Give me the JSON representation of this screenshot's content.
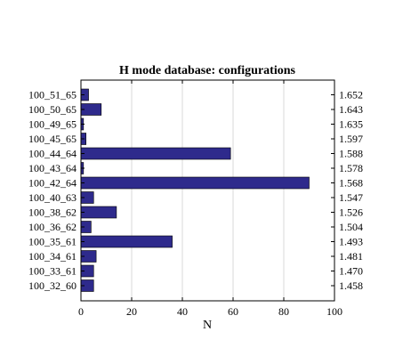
{
  "chart_data": {
    "type": "bar",
    "orientation": "horizontal",
    "title": "H mode database: configurations",
    "xlabel": "N",
    "ylabel": "",
    "xlim": [
      0,
      100
    ],
    "xticks": [
      0,
      20,
      40,
      60,
      80,
      100
    ],
    "grid": true,
    "bar_color": "#2e2a8c",
    "categories": [
      "100_51_65",
      "100_50_65",
      "100_49_65",
      "100_45_65",
      "100_44_64",
      "100_43_64",
      "100_42_64",
      "100_40_63",
      "100_38_62",
      "100_36_62",
      "100_35_61",
      "100_34_61",
      "100_33_61",
      "100_32_60"
    ],
    "right_labels": [
      "1.652",
      "1.643",
      "1.635",
      "1.597",
      "1.588",
      "1.578",
      "1.568",
      "1.547",
      "1.526",
      "1.504",
      "1.493",
      "1.481",
      "1.470",
      "1.458"
    ],
    "values": [
      3,
      8,
      1,
      2,
      59,
      1,
      90,
      5,
      14,
      4,
      36,
      6,
      5,
      5
    ]
  }
}
